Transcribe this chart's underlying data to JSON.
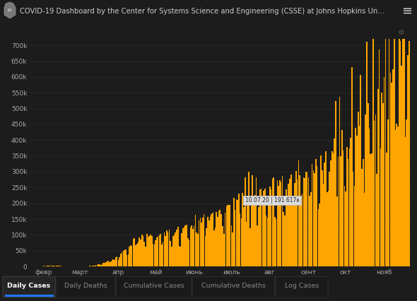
{
  "title": "COVID-19 Dashboard by the Center for Systems Science and Engineering (CSSE) at Johns Hopkins Un...",
  "background_color": "#1c1c1c",
  "plot_bg_color": "#1c1c1c",
  "bar_color": "#FFA500",
  "bar_edge_color": "#000000",
  "text_color": "#aaaaaa",
  "yticks": [
    0,
    50000,
    100000,
    150000,
    200000,
    250000,
    300000,
    350000,
    400000,
    450000,
    500000,
    550000,
    600000,
    650000,
    700000
  ],
  "ytick_labels": [
    "0",
    "50k",
    "100k",
    "150k",
    "200k",
    "250k",
    "300k",
    "350k",
    "400k",
    "450k",
    "500k",
    "550k",
    "600k",
    "650k",
    "700k"
  ],
  "xtick_labels": [
    "февр",
    "март",
    "апр",
    "май",
    "июнь",
    "июль",
    "авг",
    "сент",
    "окт",
    "нояб"
  ],
  "tab_labels": [
    "Daily Cases",
    "Daily Deaths",
    "Cumulative Cases",
    "Cumulative Deaths",
    "Log Cases"
  ],
  "active_tab": 0,
  "tooltip_text": "10.07.20 | 191 617к",
  "ymax": 720000,
  "grid_color": "#2e2e2e",
  "header_bg": "#141414",
  "tab_bar_bg": "#141414",
  "tab_active_color": "#ffffff",
  "tab_inactive_color": "#888888",
  "tab_active_underline": "#2277ff",
  "n_points": 305
}
